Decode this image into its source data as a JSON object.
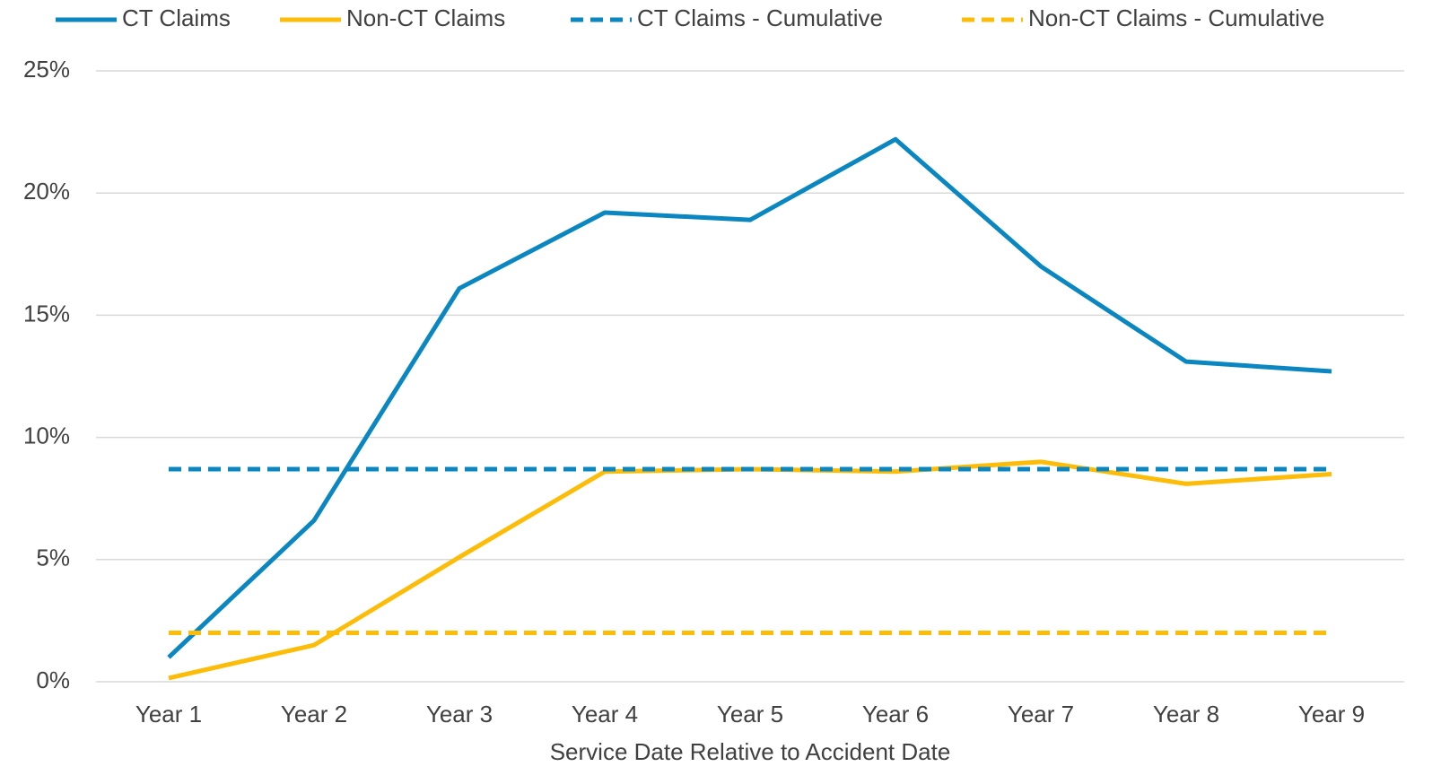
{
  "chart_data": {
    "type": "line",
    "x_label": "Service Date Relative to Accident Date",
    "categories": [
      "Year 1",
      "Year 2",
      "Year 3",
      "Year 4",
      "Year 5",
      "Year 6",
      "Year 7",
      "Year 8",
      "Year 9"
    ],
    "series": [
      {
        "name": "CT Claims",
        "color": "#0a86c0",
        "dashed": false,
        "values": [
          1.0,
          6.6,
          16.1,
          19.2,
          18.9,
          22.2,
          17.0,
          13.1,
          12.7
        ]
      },
      {
        "name": "Non-CT Claims",
        "color": "#fcbc07",
        "dashed": false,
        "values": [
          0.15,
          1.5,
          5.1,
          8.6,
          8.7,
          8.6,
          9.0,
          8.1,
          8.5
        ]
      },
      {
        "name": "CT Claims - Cumulative",
        "color": "#0a86c0",
        "dashed": true,
        "values": [
          8.7,
          8.7,
          8.7,
          8.7,
          8.7,
          8.7,
          8.7,
          8.7,
          8.7
        ]
      },
      {
        "name": "Non-CT Claims - Cumulative",
        "color": "#fcbc07",
        "dashed": true,
        "values": [
          2.0,
          2.0,
          2.0,
          2.0,
          2.0,
          2.0,
          2.0,
          2.0,
          2.0
        ]
      }
    ],
    "ylim": [
      0,
      25
    ],
    "yticks": [
      {
        "value": 0,
        "label": "0%"
      },
      {
        "value": 5,
        "label": "5%"
      },
      {
        "value": 10,
        "label": "10%"
      },
      {
        "value": 15,
        "label": "15%"
      },
      {
        "value": 20,
        "label": "20%"
      },
      {
        "value": 25,
        "label": "25%"
      }
    ],
    "grid": true,
    "legend": "top"
  }
}
